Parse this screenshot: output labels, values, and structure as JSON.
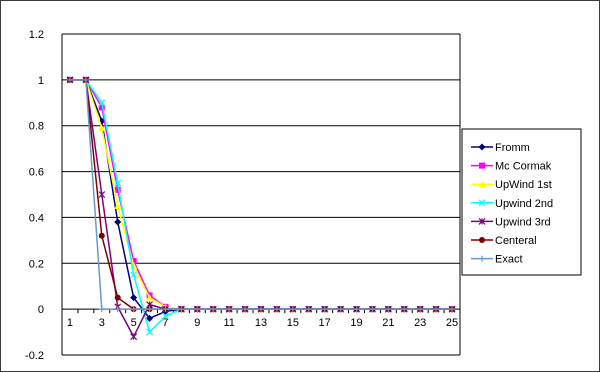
{
  "chart_data": {
    "type": "line",
    "title": "",
    "xlabel": "",
    "ylabel": "",
    "x": [
      1,
      2,
      3,
      4,
      5,
      6,
      7,
      8,
      9,
      10,
      11,
      12,
      13,
      14,
      15,
      16,
      17,
      18,
      19,
      20,
      21,
      22,
      23,
      24,
      25
    ],
    "x_tick_labels": [
      "1",
      "3",
      "5",
      "7",
      "9",
      "11",
      "13",
      "15",
      "17",
      "19",
      "21",
      "23",
      "25"
    ],
    "ylim": [
      -0.2,
      1.2
    ],
    "y_ticks": [
      -0.2,
      0,
      0.2,
      0.4,
      0.6,
      0.8,
      1,
      1.2
    ],
    "y_tick_labels": [
      "-0.2",
      "0",
      "0.2",
      "0.4",
      "0.6",
      "0.8",
      "1",
      "1.2"
    ],
    "grid": "horizontal",
    "legend_position": "right",
    "series": [
      {
        "name": "Fromm",
        "color": "#000080",
        "marker": "diamond",
        "values": [
          1,
          1,
          0.82,
          0.38,
          0.05,
          -0.04,
          -0.01,
          0,
          0,
          0,
          0,
          0,
          0,
          0,
          0,
          0,
          0,
          0,
          0,
          0,
          0,
          0,
          0,
          0,
          0
        ]
      },
      {
        "name": "Mc Cormak",
        "color": "#FF00FF",
        "marker": "square",
        "values": [
          1,
          1,
          0.88,
          0.52,
          0.21,
          0.06,
          0.01,
          0,
          0,
          0,
          0,
          0,
          0,
          0,
          0,
          0,
          0,
          0,
          0,
          0,
          0,
          0,
          0,
          0,
          0
        ]
      },
      {
        "name": "UpWind 1st",
        "color": "#FFFF00",
        "marker": "triangle",
        "values": [
          1,
          1,
          0.79,
          0.45,
          0.19,
          0.05,
          0.01,
          0,
          0,
          0,
          0,
          0,
          0,
          0,
          0,
          0,
          0,
          0,
          0,
          0,
          0,
          0,
          0,
          0,
          0
        ]
      },
      {
        "name": "Upwind 2nd",
        "color": "#00FFFF",
        "marker": "x",
        "values": [
          1,
          1,
          0.9,
          0.55,
          0.15,
          -0.1,
          -0.03,
          0,
          0,
          0,
          0,
          0,
          0,
          0,
          0,
          0,
          0,
          0,
          0,
          0,
          0,
          0,
          0,
          0,
          0
        ]
      },
      {
        "name": "Upwind 3rd",
        "color": "#800080",
        "marker": "star",
        "values": [
          1,
          1,
          0.5,
          0.01,
          -0.12,
          0.02,
          0,
          0,
          0,
          0,
          0,
          0,
          0,
          0,
          0,
          0,
          0,
          0,
          0,
          0,
          0,
          0,
          0,
          0,
          0
        ]
      },
      {
        "name": "Centeral",
        "color": "#800000",
        "marker": "circle",
        "values": [
          1,
          1,
          0.32,
          0.05,
          0,
          0,
          0,
          0,
          0,
          0,
          0,
          0,
          0,
          0,
          0,
          0,
          0,
          0,
          0,
          0,
          0,
          0,
          0,
          0,
          0
        ]
      },
      {
        "name": "Exact",
        "color": "#6699CC",
        "marker": "plus",
        "values": [
          1,
          1,
          0,
          0,
          0,
          0,
          0,
          0,
          0,
          0,
          0,
          0,
          0,
          0,
          0,
          0,
          0,
          0,
          0,
          0,
          0,
          0,
          0,
          0,
          0
        ]
      }
    ]
  }
}
